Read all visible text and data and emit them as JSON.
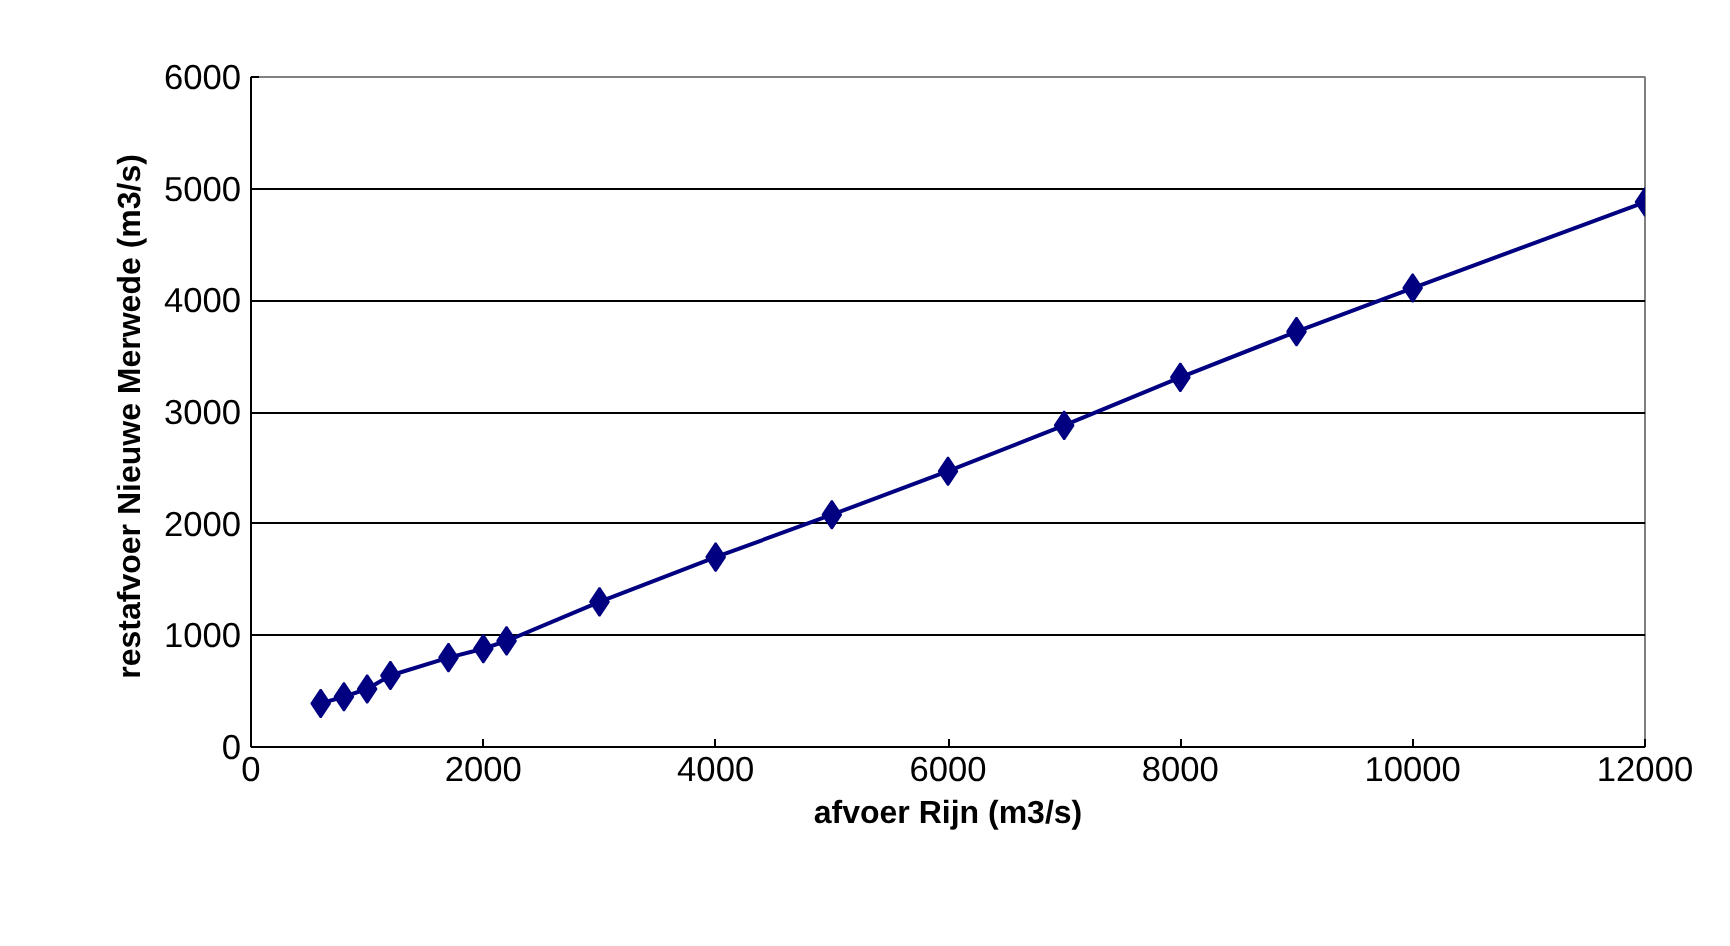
{
  "chart_data": {
    "type": "line",
    "xlabel": "afvoer Rijn (m3/s)",
    "ylabel": "restafvoer Nieuwe Merwede  (m3/s)",
    "x": [
      600,
      800,
      1000,
      1200,
      1700,
      2000,
      2200,
      3000,
      4000,
      5000,
      6000,
      7000,
      8000,
      9000,
      10000,
      12000
    ],
    "series": [
      {
        "color": "#000080",
        "values": [
          390,
          450,
          520,
          640,
          800,
          880,
          950,
          1300,
          1700,
          2080,
          2470,
          2880,
          3310,
          3720,
          4110,
          4880
        ]
      }
    ],
    "xlim": [
      0,
      12000
    ],
    "xticks": [
      0,
      2000,
      4000,
      6000,
      8000,
      10000,
      12000
    ],
    "ylim": [
      0,
      6000
    ],
    "yticks": [
      0,
      1000,
      2000,
      3000,
      4000,
      5000,
      6000
    ],
    "grid": "y",
    "marker": "diamond",
    "line_style": "solid"
  }
}
